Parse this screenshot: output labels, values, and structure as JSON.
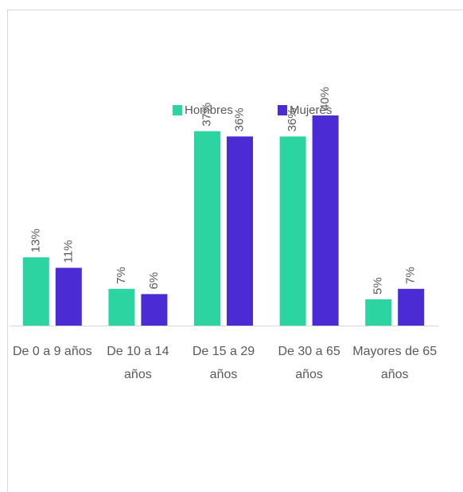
{
  "chart_data": {
    "type": "bar",
    "categories": [
      "De 0 a 9 años",
      "De 10 a 14 años",
      "De 15 a 29 años",
      "De 30 a 65 años",
      "Mayores de 65 años"
    ],
    "series": [
      {
        "name": "Hombres",
        "color": "#2bd4a0",
        "values": [
          13,
          7,
          37,
          36,
          5
        ],
        "value_labels": [
          "13%",
          "7%",
          "37%",
          "36%",
          "5%"
        ]
      },
      {
        "name": "Mujeres",
        "color": "#4b2bd4",
        "values": [
          11,
          6,
          36,
          40,
          7
        ],
        "value_labels": [
          "11%",
          "6%",
          "36%",
          "40%",
          "7%"
        ]
      }
    ],
    "legend": "top"
  }
}
